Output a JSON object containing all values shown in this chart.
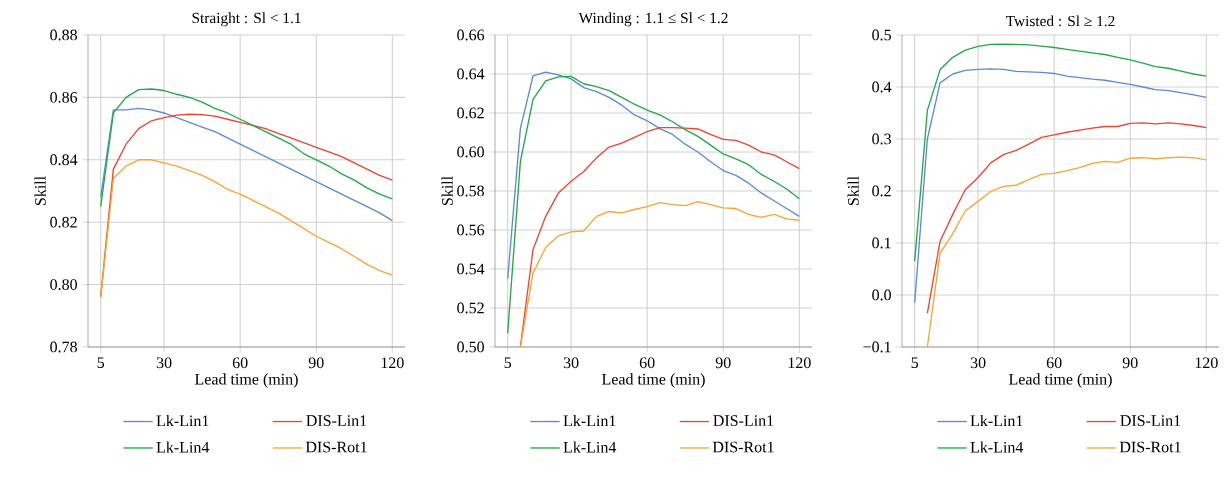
{
  "chart_data": [
    {
      "type": "line",
      "title": "Straight : Sl < 1.1",
      "xlabel": "Lead time (min)",
      "ylabel": "Skill",
      "grid": true,
      "legend": "bottom",
      "marker": "none",
      "line_style": "solid",
      "xlim": [
        0,
        125
      ],
      "ylim": [
        0.78,
        0.88
      ],
      "xticks": [
        5,
        30,
        60,
        90,
        120
      ],
      "yticks": [
        {
          "value": 0.78,
          "label": "0.78"
        },
        {
          "value": 0.8,
          "label": "0.80"
        },
        {
          "value": 0.82,
          "label": "0.82"
        },
        {
          "value": 0.84,
          "label": "0.84"
        },
        {
          "value": 0.86,
          "label": "0.86"
        },
        {
          "value": 0.88,
          "label": "0.88"
        }
      ],
      "x": [
        5,
        10,
        15,
        20,
        25,
        30,
        35,
        40,
        45,
        50,
        55,
        60,
        65,
        70,
        75,
        80,
        85,
        90,
        95,
        100,
        105,
        110,
        115,
        120
      ],
      "series": [
        {
          "name": "Lk-Lin1",
          "color": "#5b8bd6",
          "values": [
            0.828,
            0.856,
            0.856,
            0.8565,
            0.856,
            0.855,
            0.8535,
            0.852,
            0.8505,
            0.849,
            0.847,
            0.845,
            0.843,
            0.841,
            0.839,
            0.837,
            0.835,
            0.833,
            0.831,
            0.829,
            0.827,
            0.825,
            0.823,
            0.8205
          ]
        },
        {
          "name": "DIS-Lin1",
          "color": "#f0442c",
          "values": [
            0.796,
            0.837,
            0.845,
            0.85,
            0.8525,
            0.8535,
            0.8543,
            0.8546,
            0.8545,
            0.854,
            0.853,
            0.852,
            0.851,
            0.85,
            0.8485,
            0.847,
            0.8455,
            0.844,
            0.8425,
            0.841,
            0.839,
            0.837,
            0.835,
            0.8335
          ]
        },
        {
          "name": "Lk-Lin4",
          "color": "#1faa4a",
          "values": [
            0.825,
            0.855,
            0.86,
            0.8625,
            0.8627,
            0.8622,
            0.861,
            0.86,
            0.8585,
            0.8565,
            0.855,
            0.853,
            0.851,
            0.849,
            0.847,
            0.845,
            0.842,
            0.84,
            0.838,
            0.8355,
            0.8335,
            0.831,
            0.829,
            0.8275
          ]
        },
        {
          "name": "DIS-Rot1",
          "color": "#f9a533",
          "values": [
            0.796,
            0.834,
            0.838,
            0.84,
            0.84,
            0.839,
            0.838,
            0.8365,
            0.835,
            0.833,
            0.8305,
            0.829,
            0.827,
            0.825,
            0.823,
            0.8205,
            0.818,
            0.8155,
            0.8135,
            0.8115,
            0.809,
            0.8065,
            0.8045,
            0.803
          ]
        }
      ]
    },
    {
      "type": "line",
      "title": "Winding : 1.1 ≤ Sl < 1.2",
      "xlabel": "Lead time (min)",
      "ylabel": "Skill",
      "grid": true,
      "legend": "bottom",
      "marker": "none",
      "line_style": "solid",
      "xlim": [
        0,
        125
      ],
      "ylim": [
        0.5,
        0.66
      ],
      "xticks": [
        5,
        30,
        60,
        90,
        120
      ],
      "yticks": [
        {
          "value": 0.5,
          "label": "0.50"
        },
        {
          "value": 0.52,
          "label": "0.52"
        },
        {
          "value": 0.54,
          "label": "0.54"
        },
        {
          "value": 0.56,
          "label": "0.56"
        },
        {
          "value": 0.58,
          "label": "0.58"
        },
        {
          "value": 0.6,
          "label": "0.60"
        },
        {
          "value": 0.62,
          "label": "0.62"
        },
        {
          "value": 0.64,
          "label": "0.64"
        },
        {
          "value": 0.66,
          "label": "0.66"
        }
      ],
      "x": [
        5,
        10,
        15,
        20,
        25,
        30,
        35,
        40,
        45,
        50,
        55,
        60,
        65,
        70,
        75,
        80,
        85,
        90,
        95,
        100,
        105,
        110,
        115,
        120
      ],
      "series": [
        {
          "name": "Lk-Lin1",
          "color": "#5b8bd6",
          "values": [
            0.535,
            0.612,
            0.639,
            0.641,
            0.6395,
            0.6375,
            0.633,
            0.631,
            0.628,
            0.624,
            0.619,
            0.616,
            0.612,
            0.609,
            0.604,
            0.6,
            0.595,
            0.5905,
            0.588,
            0.584,
            0.579,
            0.575,
            0.571,
            0.567
          ]
        },
        {
          "name": "DIS-Lin1",
          "color": "#f0442c",
          "values": [
            null,
            0.5,
            0.55,
            0.567,
            0.579,
            0.585,
            0.59,
            0.597,
            0.6025,
            0.6045,
            0.6075,
            0.6105,
            0.6125,
            0.6125,
            0.6122,
            0.6118,
            0.609,
            0.6065,
            0.606,
            0.6035,
            0.6,
            0.5985,
            0.595,
            0.5915
          ]
        },
        {
          "name": "Lk-Lin4",
          "color": "#1faa4a",
          "values": [
            0.507,
            0.595,
            0.627,
            0.6365,
            0.6385,
            0.6388,
            0.635,
            0.6335,
            0.6315,
            0.628,
            0.6245,
            0.6215,
            0.619,
            0.6155,
            0.6115,
            0.608,
            0.6035,
            0.599,
            0.5965,
            0.5935,
            0.5885,
            0.585,
            0.581,
            0.576
          ]
        },
        {
          "name": "DIS-Rot1",
          "color": "#f9a533",
          "values": [
            null,
            0.5,
            0.538,
            0.551,
            0.557,
            0.559,
            0.5595,
            0.567,
            0.5695,
            0.5688,
            0.5705,
            0.572,
            0.574,
            0.573,
            0.5725,
            0.5745,
            0.573,
            0.5713,
            0.571,
            0.568,
            0.5665,
            0.568,
            0.5657,
            0.565
          ]
        }
      ]
    },
    {
      "type": "line",
      "title": "Twisted : Sl ≥ 1.2",
      "xlabel": "Lead time (min)",
      "ylabel": "Skill",
      "grid": true,
      "legend": "bottom",
      "marker": "none",
      "line_style": "solid",
      "xlim": [
        0,
        125
      ],
      "ylim": [
        -0.1,
        0.5
      ],
      "xticks": [
        5,
        30,
        60,
        90,
        120
      ],
      "yticks": [
        {
          "value": -0.1,
          "label": "−0.1"
        },
        {
          "value": 0,
          "label": "0.0"
        },
        0.1,
        0.2,
        0.3,
        0.4,
        0.5
      ],
      "x": [
        5,
        10,
        15,
        20,
        25,
        30,
        35,
        40,
        45,
        50,
        55,
        60,
        65,
        70,
        75,
        80,
        85,
        90,
        95,
        100,
        105,
        110,
        115,
        120
      ],
      "series": [
        {
          "name": "Lk-Lin1",
          "color": "#5b8bd6",
          "values": [
            -0.015,
            0.3,
            0.408,
            0.425,
            0.432,
            0.434,
            0.435,
            0.434,
            0.43,
            0.429,
            0.428,
            0.426,
            0.421,
            0.418,
            0.415,
            0.413,
            0.409,
            0.405,
            0.4,
            0.395,
            0.393,
            0.389,
            0.385,
            0.38
          ]
        },
        {
          "name": "DIS-Lin1",
          "color": "#f0442c",
          "values": [
            null,
            -0.035,
            0.103,
            0.155,
            0.203,
            0.226,
            0.254,
            0.27,
            0.278,
            0.29,
            0.303,
            0.308,
            0.313,
            0.317,
            0.321,
            0.324,
            0.324,
            0.33,
            0.331,
            0.329,
            0.331,
            0.329,
            0.326,
            0.322
          ]
        },
        {
          "name": "Lk-Lin4",
          "color": "#1faa4a",
          "values": [
            0.065,
            0.355,
            0.433,
            0.457,
            0.471,
            0.478,
            0.482,
            0.4825,
            0.482,
            0.481,
            0.4785,
            0.476,
            0.4725,
            0.469,
            0.4655,
            0.4625,
            0.457,
            0.452,
            0.446,
            0.439,
            0.436,
            0.4305,
            0.425,
            0.421
          ]
        },
        {
          "name": "DIS-Rot1",
          "color": "#f9a533",
          "values": [
            null,
            -0.1,
            0.08,
            0.118,
            0.162,
            0.18,
            0.199,
            0.209,
            0.211,
            0.222,
            0.232,
            0.234,
            0.239,
            0.245,
            0.253,
            0.257,
            0.255,
            0.263,
            0.264,
            0.262,
            0.264,
            0.265,
            0.264,
            0.26
          ]
        }
      ]
    }
  ]
}
